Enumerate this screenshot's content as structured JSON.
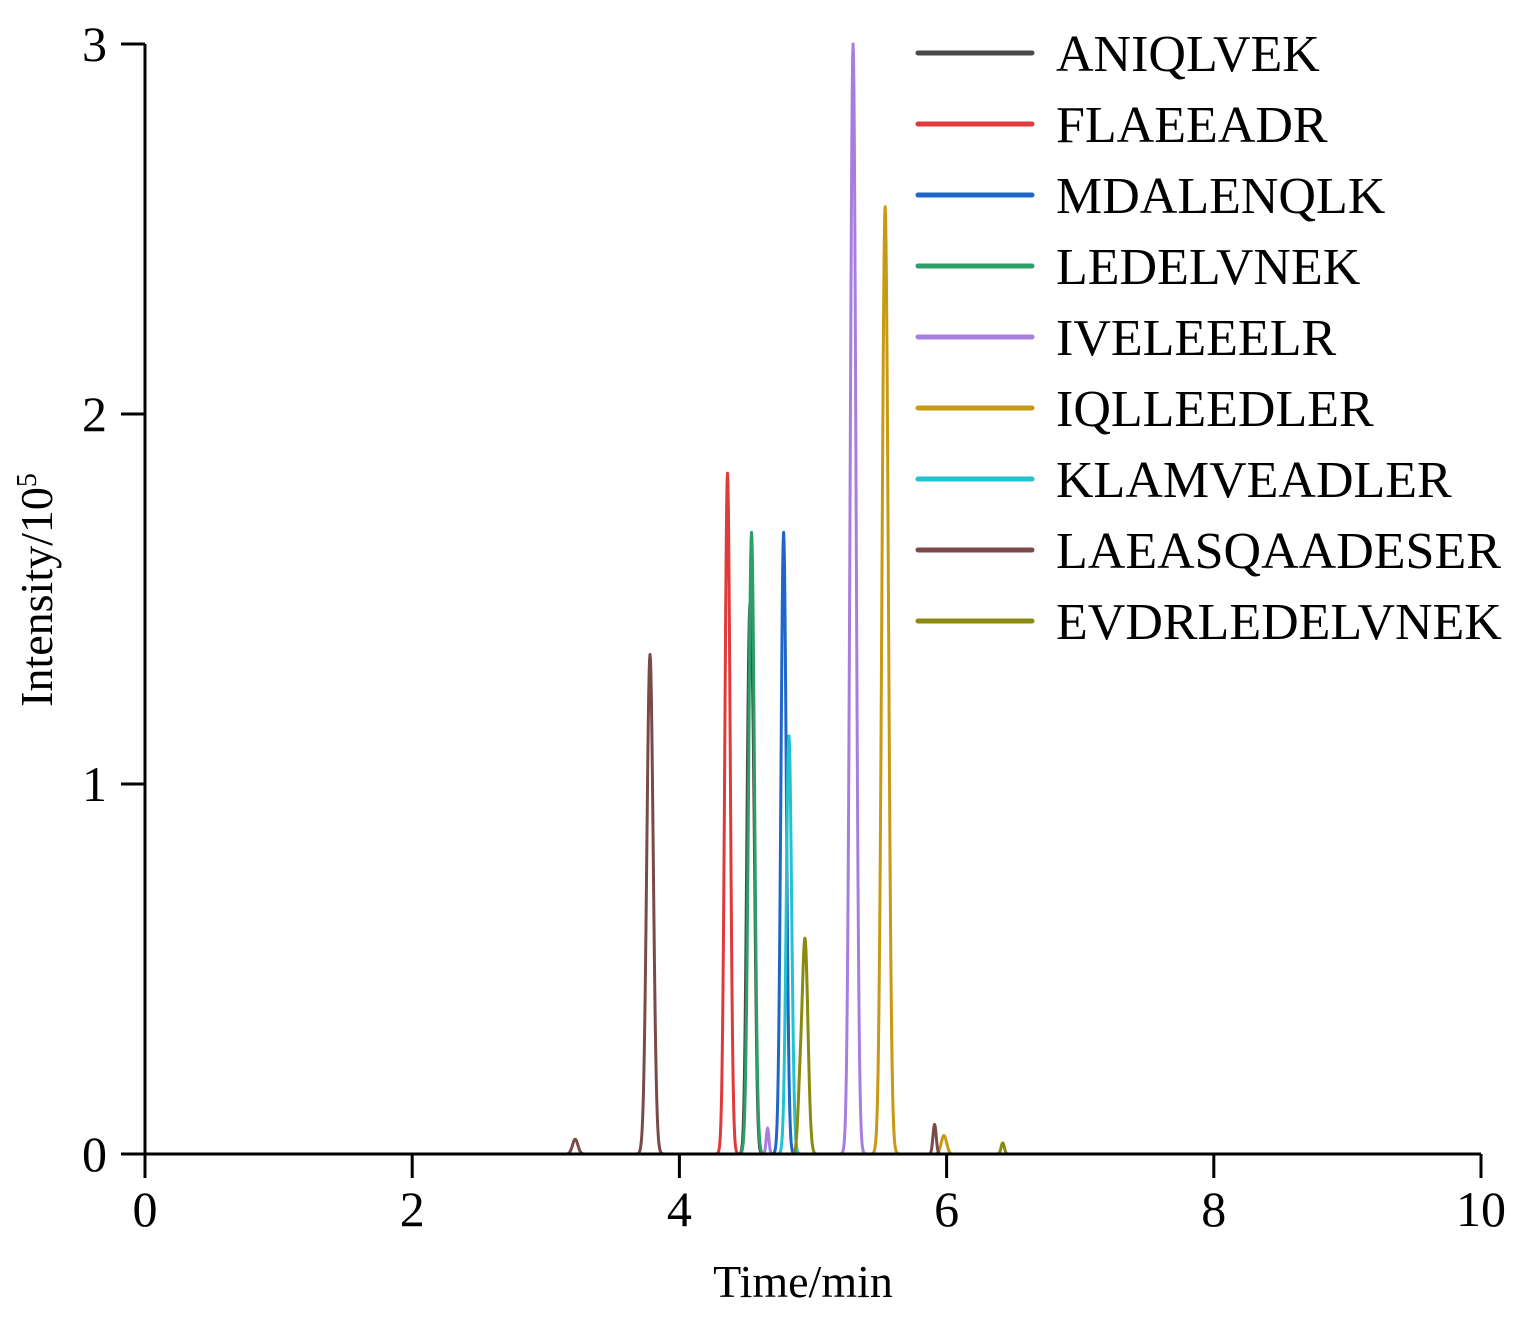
{
  "chart_data": {
    "type": "line",
    "title": "",
    "xlabel": "Time/min",
    "ylabel_main": "Intensity/10",
    "ylabel_sup": "5",
    "xlim": [
      0,
      10
    ],
    "ylim": [
      0,
      3
    ],
    "xticks": [
      0,
      2,
      4,
      6,
      8,
      10
    ],
    "yticks": [
      0,
      1,
      2,
      3
    ],
    "legend_position": "top-right",
    "series": [
      {
        "name": "ANIQLVEK",
        "color": "#4a4a4a",
        "peaks": [
          {
            "rt": 4.52,
            "height": 1.16,
            "width": 0.018
          },
          {
            "rt": 4.55,
            "height": 0.92,
            "width": 0.018
          }
        ]
      },
      {
        "name": "FLAEEADR",
        "color": "#e03a3a",
        "peaks": [
          {
            "rt": 4.36,
            "height": 1.84,
            "width": 0.02
          }
        ]
      },
      {
        "name": "MDALENQLK",
        "color": "#1f66c9",
        "peaks": [
          {
            "rt": 4.78,
            "height": 1.68,
            "width": 0.02
          }
        ]
      },
      {
        "name": "LEDELVNEK",
        "color": "#2e9e68",
        "peaks": [
          {
            "rt": 4.54,
            "height": 1.68,
            "width": 0.022
          }
        ]
      },
      {
        "name": "IVELEEELR",
        "color": "#a77de0",
        "peaks": [
          {
            "rt": 5.3,
            "height": 3.0,
            "width": 0.022
          },
          {
            "rt": 4.66,
            "height": 0.07,
            "width": 0.01
          }
        ]
      },
      {
        "name": "IQLLEEDLER",
        "color": "#c89a14",
        "peaks": [
          {
            "rt": 5.54,
            "height": 2.56,
            "width": 0.024
          },
          {
            "rt": 5.98,
            "height": 0.05,
            "width": 0.02
          }
        ]
      },
      {
        "name": "KLAMVEADLER",
        "color": "#22c3cf",
        "peaks": [
          {
            "rt": 4.82,
            "height": 1.13,
            "width": 0.02
          }
        ]
      },
      {
        "name": "LAEASQAADESER",
        "color": "#7a4a48",
        "peaks": [
          {
            "rt": 3.78,
            "height": 1.35,
            "width": 0.024
          },
          {
            "rt": 3.22,
            "height": 0.04,
            "width": 0.02
          },
          {
            "rt": 5.91,
            "height": 0.08,
            "width": 0.012
          }
        ]
      },
      {
        "name": "EVDRLEDELVNEK",
        "color": "#8a8a10",
        "peaks": [
          {
            "rt": 4.94,
            "height": 0.58,
            "width": 0.022
          },
          {
            "rt": 4.9,
            "height": 0.12,
            "width": 0.015
          },
          {
            "rt": 6.42,
            "height": 0.03,
            "width": 0.012
          }
        ]
      }
    ]
  }
}
